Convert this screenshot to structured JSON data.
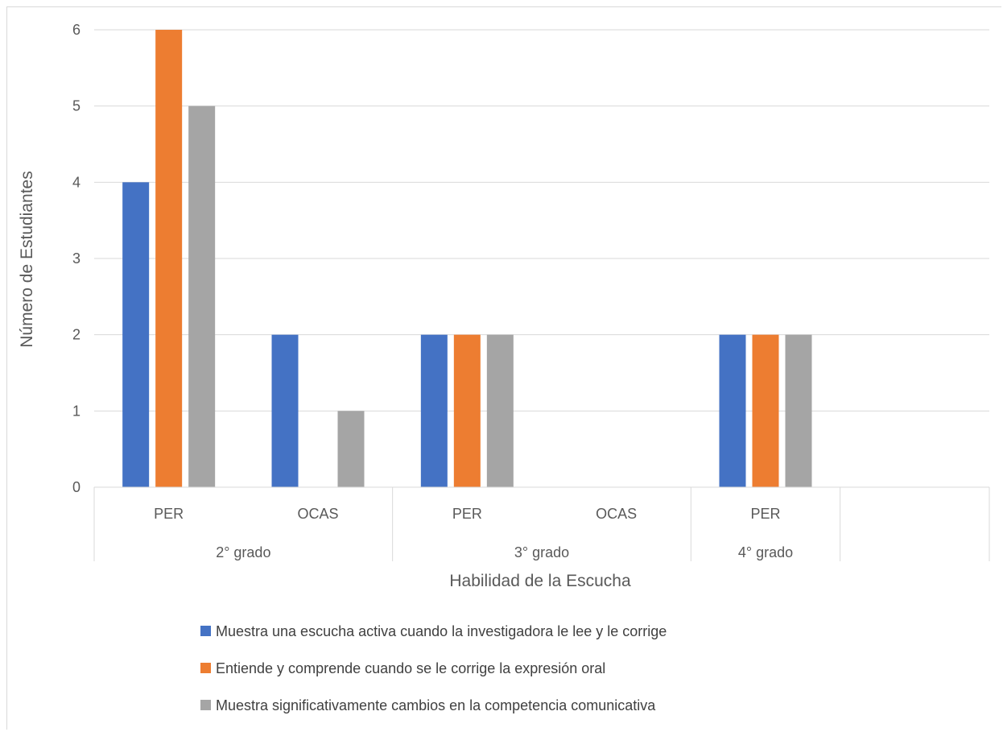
{
  "chart_data": {
    "type": "bar",
    "ylabel": "Número de Estudiantes",
    "xlabel": "Habilidad de la Escucha",
    "ylim": [
      0,
      6
    ],
    "yticks": [
      0,
      1,
      2,
      3,
      4,
      5,
      6
    ],
    "grid": true,
    "legend_position": "bottom",
    "categories": [
      "PER",
      "OCAS",
      "PER",
      "OCAS",
      "PER",
      ""
    ],
    "groups": [
      {
        "label": "2° grado",
        "span": 2
      },
      {
        "label": "3° grado",
        "span": 2
      },
      {
        "label": "4° grado",
        "span": 1
      },
      {
        "label": "",
        "span": 1
      }
    ],
    "series": [
      {
        "name": "Muestra una escucha activa cuando la investigadora le lee y le corrige",
        "color": "#4472c4",
        "values": [
          4,
          2,
          2,
          0,
          2,
          0
        ]
      },
      {
        "name": "Entiende y comprende cuando se le corrige la expresión oral",
        "color": "#ed7d31",
        "values": [
          6,
          0,
          2,
          0,
          2,
          0
        ]
      },
      {
        "name": "Muestra significativamente cambios en la competencia comunicativa",
        "color": "#a5a5a5",
        "values": [
          5,
          1,
          2,
          0,
          2,
          0
        ]
      }
    ]
  }
}
